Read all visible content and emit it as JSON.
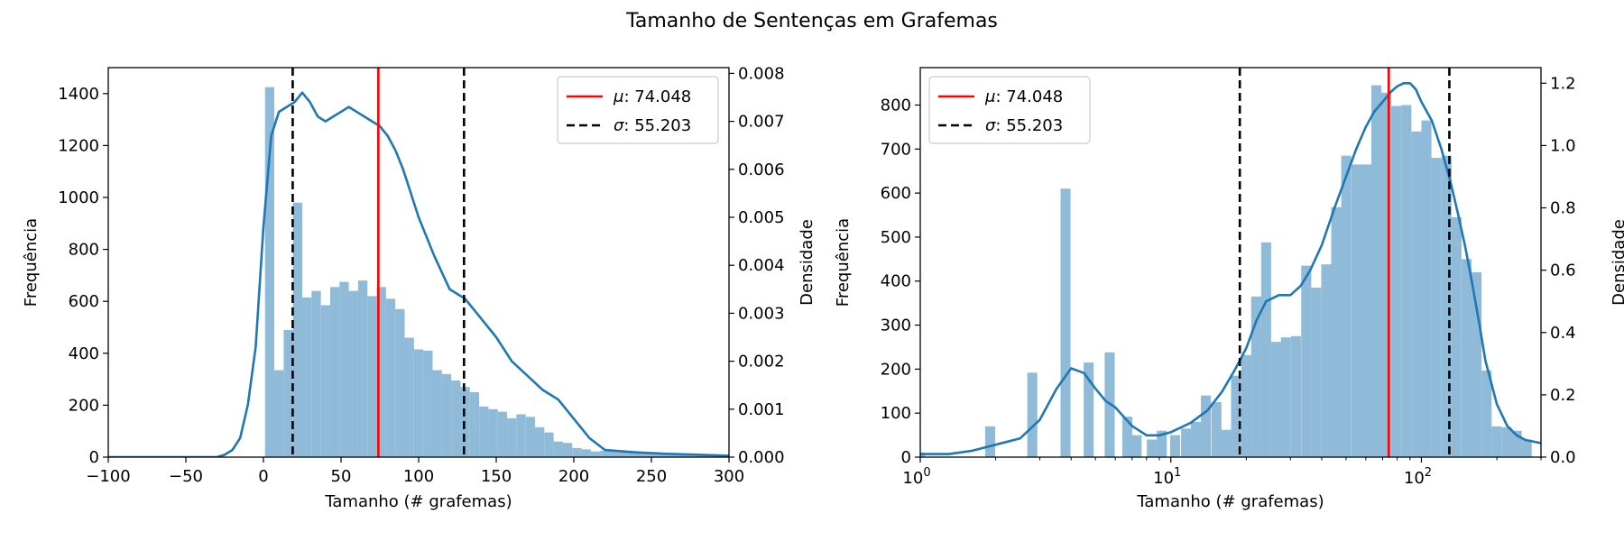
{
  "figure": {
    "title": "Tamanho de Sentenças em Grafemas"
  },
  "chart_data": [
    {
      "type": "bar",
      "subtype": "histogram-with-kde",
      "xscale": "linear",
      "xlabel": "Tamanho (# grafemas)",
      "ylabel": "Frequência",
      "ylabel_right": "Densidade",
      "xlim": [
        -100,
        300
      ],
      "ylim": [
        0,
        1500
      ],
      "ylim_right": [
        0,
        0.00812
      ],
      "xticks": [
        -100,
        -50,
        0,
        50,
        100,
        150,
        200,
        250,
        300
      ],
      "xtick_labels": [
        "−100",
        "−50",
        "0",
        "50",
        "100",
        "150",
        "200",
        "250",
        "300"
      ],
      "yticks": [
        0,
        200,
        400,
        600,
        800,
        1000,
        1200,
        1400
      ],
      "yticks_right": [
        0.0,
        0.001,
        0.002,
        0.003,
        0.004,
        0.005,
        0.006,
        0.007,
        0.008
      ],
      "ytick_labels_right": [
        "0.000",
        "0.001",
        "0.002",
        "0.003",
        "0.004",
        "0.005",
        "0.006",
        "0.007",
        "0.008"
      ],
      "grid": false,
      "legend_position": "top-right",
      "legend": [
        {
          "label_sym": "μ",
          "label_val": ": 74.048",
          "style": "solid",
          "color": "#ff0000"
        },
        {
          "label_sym": "σ",
          "label_val": ": 55.203",
          "style": "dashed",
          "color": "#000000"
        }
      ],
      "bin_edges": [
        1,
        7,
        13,
        19,
        25,
        31,
        37,
        43,
        49,
        55,
        61,
        67,
        73,
        79,
        85,
        91,
        97,
        103,
        109,
        115,
        121,
        127,
        133,
        139,
        145,
        151,
        157,
        163,
        169,
        175,
        181,
        187,
        193,
        199,
        205,
        211,
        217,
        223,
        229,
        235,
        241,
        247,
        253,
        259,
        265,
        271,
        277,
        283,
        289,
        295,
        301
      ],
      "counts": [
        1425,
        335,
        490,
        980,
        615,
        640,
        585,
        655,
        675,
        640,
        680,
        620,
        655,
        610,
        570,
        460,
        415,
        410,
        335,
        320,
        295,
        270,
        250,
        195,
        185,
        175,
        150,
        165,
        155,
        115,
        95,
        60,
        55,
        35,
        30,
        22,
        25,
        25,
        20,
        18,
        15,
        15,
        12,
        10,
        10,
        8,
        8,
        6,
        6,
        5
      ],
      "kde": {
        "x": [
          -100,
          -30,
          -25,
          -20,
          -15,
          -10,
          -5,
          0,
          5,
          10,
          15,
          20,
          25,
          30,
          35,
          40,
          45,
          50,
          55,
          60,
          65,
          70,
          75,
          80,
          85,
          90,
          95,
          100,
          110,
          120,
          130,
          140,
          150,
          160,
          170,
          180,
          190,
          200,
          210,
          220,
          240,
          260,
          280,
          300
        ],
        "y": [
          0,
          0,
          5e-05,
          0.00015,
          0.0004,
          0.0011,
          0.0023,
          0.0048,
          0.0067,
          0.0072,
          0.0073,
          0.0074,
          0.0076,
          0.0074,
          0.0071,
          0.007,
          0.0071,
          0.0072,
          0.0073,
          0.0072,
          0.0071,
          0.007,
          0.0069,
          0.0067,
          0.0064,
          0.006,
          0.0055,
          0.005,
          0.0042,
          0.0035,
          0.0033,
          0.0029,
          0.0025,
          0.002,
          0.0017,
          0.0014,
          0.0012,
          0.0008,
          0.0004,
          0.00015,
          0.0001,
          7e-05,
          5e-05,
          3e-05
        ]
      },
      "mean": 74.048,
      "std": 55.203,
      "sigma_lines": [
        18.845,
        129.251
      ]
    },
    {
      "type": "bar",
      "subtype": "histogram-with-kde",
      "xscale": "log",
      "xlabel": "Tamanho (# grafemas)",
      "ylabel": "Frequência",
      "ylabel_right": "Densidade",
      "xlim": [
        1,
        300
      ],
      "ylim": [
        0,
        885
      ],
      "ylim_right": [
        0,
        1.25
      ],
      "xticks": [
        1,
        10,
        100
      ],
      "xtick_labels": [
        {
          "base": "10",
          "exp": "0"
        },
        {
          "base": "10",
          "exp": "1"
        },
        {
          "base": "10",
          "exp": "2"
        }
      ],
      "yticks": [
        0,
        100,
        200,
        300,
        400,
        500,
        600,
        700,
        800
      ],
      "yticks_right": [
        0.0,
        0.2,
        0.4,
        0.6,
        0.8,
        1.0,
        1.2
      ],
      "ytick_labels_right": [
        "0.0",
        "0.2",
        "0.4",
        "0.6",
        "0.8",
        "1.0",
        "1.2"
      ],
      "grid": false,
      "legend_position": "top-left",
      "legend": [
        {
          "label_sym": "μ",
          "label_val": ": 74.048",
          "style": "solid",
          "color": "#ff0000"
        },
        {
          "label_sym": "σ",
          "label_val": ": 55.203",
          "style": "dashed",
          "color": "#000000"
        }
      ],
      "log_bins": [
        {
          "x": 1.0,
          "count": 10
        },
        {
          "x": 1.9,
          "count": 70
        },
        {
          "x": 2.8,
          "count": 192
        },
        {
          "x": 3.8,
          "count": 610
        },
        {
          "x": 4.7,
          "count": 215
        },
        {
          "x": 5.7,
          "count": 238
        },
        {
          "x": 6.7,
          "count": 92
        },
        {
          "x": 7.3,
          "count": 50
        },
        {
          "x": 8.4,
          "count": 40
        },
        {
          "x": 9.2,
          "count": 60
        },
        {
          "x": 10.4,
          "count": 50
        },
        {
          "x": 11.5,
          "count": 65
        },
        {
          "x": 12.6,
          "count": 80
        },
        {
          "x": 13.8,
          "count": 140
        },
        {
          "x": 15.2,
          "count": 125
        },
        {
          "x": 16.6,
          "count": 62
        },
        {
          "x": 18.2,
          "count": 185
        },
        {
          "x": 20.0,
          "count": 232
        },
        {
          "x": 21.9,
          "count": 365
        },
        {
          "x": 24.0,
          "count": 488
        },
        {
          "x": 26.3,
          "count": 262
        },
        {
          "x": 28.8,
          "count": 272
        },
        {
          "x": 31.6,
          "count": 275
        },
        {
          "x": 34.7,
          "count": 435
        },
        {
          "x": 38.0,
          "count": 385
        },
        {
          "x": 41.7,
          "count": 438
        },
        {
          "x": 45.7,
          "count": 568
        },
        {
          "x": 50.1,
          "count": 685
        },
        {
          "x": 55.0,
          "count": 665
        },
        {
          "x": 60.3,
          "count": 665
        },
        {
          "x": 66.1,
          "count": 845
        },
        {
          "x": 72.4,
          "count": 828
        },
        {
          "x": 79.4,
          "count": 798
        },
        {
          "x": 87.1,
          "count": 800
        },
        {
          "x": 95.5,
          "count": 740
        },
        {
          "x": 104.7,
          "count": 765
        },
        {
          "x": 114.8,
          "count": 680
        },
        {
          "x": 125.9,
          "count": 685
        },
        {
          "x": 138.0,
          "count": 545
        },
        {
          "x": 151.4,
          "count": 450
        },
        {
          "x": 166.0,
          "count": 420
        },
        {
          "x": 182.0,
          "count": 197
        },
        {
          "x": 199.5,
          "count": 70
        },
        {
          "x": 218.8,
          "count": 68
        },
        {
          "x": 240.0,
          "count": 60
        },
        {
          "x": 263.0,
          "count": 40
        }
      ],
      "log_bin_width_decades": 0.04,
      "kde": {
        "x": [
          1.0,
          1.3,
          1.6,
          2.0,
          2.5,
          3.0,
          3.5,
          4.0,
          4.5,
          5.0,
          5.5,
          6.0,
          7.0,
          8.0,
          9.0,
          10.0,
          12.0,
          14.0,
          16.0,
          18.0,
          20.0,
          22.0,
          24.0,
          27.0,
          30.0,
          33.0,
          36.0,
          40.0,
          45.0,
          50.0,
          55.0,
          60.0,
          65.0,
          70.0,
          75.0,
          80.0,
          85.0,
          90.0,
          95.0,
          100.0,
          110.0,
          120.0,
          130.0,
          140.0,
          150.0,
          160.0,
          170.0,
          180.0,
          200.0,
          220.0,
          240.0,
          260.0,
          280.0,
          300.0
        ],
        "y": [
          0.01,
          0.01,
          0.02,
          0.04,
          0.06,
          0.12,
          0.22,
          0.285,
          0.27,
          0.22,
          0.18,
          0.16,
          0.1,
          0.07,
          0.07,
          0.08,
          0.11,
          0.15,
          0.21,
          0.28,
          0.35,
          0.44,
          0.5,
          0.52,
          0.52,
          0.55,
          0.6,
          0.68,
          0.8,
          0.9,
          0.99,
          1.06,
          1.11,
          1.14,
          1.17,
          1.19,
          1.2,
          1.2,
          1.18,
          1.14,
          1.08,
          0.99,
          0.89,
          0.78,
          0.67,
          0.55,
          0.43,
          0.31,
          0.17,
          0.1,
          0.07,
          0.055,
          0.05,
          0.045
        ]
      },
      "mean": 74.048,
      "std": 55.203,
      "sigma_lines": [
        18.845,
        129.251
      ]
    }
  ],
  "colors": {
    "bar": "#8fbbd9",
    "kde": "#1f77b4",
    "mean_line": "#ff0000",
    "sigma_line": "#000000"
  }
}
